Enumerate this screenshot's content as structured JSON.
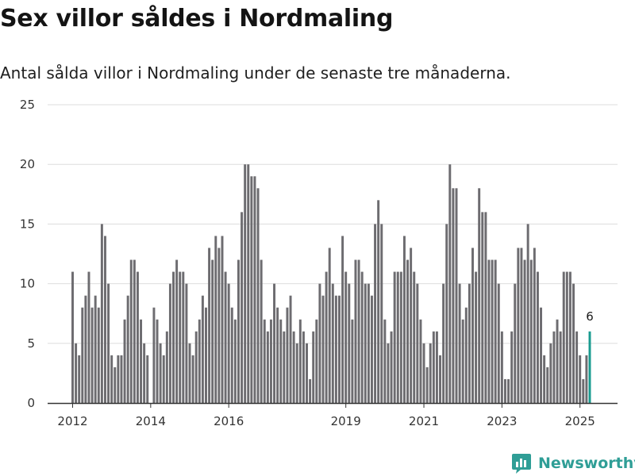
{
  "title": "Sex villor såldes i Nordmaling",
  "subtitle": "Antal sålda villor i Nordmaling under de senaste tre månaderna.",
  "brand": "Newsworthy",
  "colors": {
    "bar": "#6d6c70",
    "highlight": "#1a9b90",
    "grid": "#dddddd",
    "axis": "#333333",
    "brand": "#2f9e96"
  },
  "chart_data": {
    "type": "bar",
    "y_ticks": [
      0,
      5,
      10,
      15,
      20,
      25
    ],
    "ylim": [
      0,
      25
    ],
    "x_ticks": [
      {
        "label": "2012",
        "year": 2012
      },
      {
        "label": "2014",
        "year": 2014
      },
      {
        "label": "2016",
        "year": 2016
      },
      {
        "label": "2019",
        "year": 2019
      },
      {
        "label": "2021",
        "year": 2021
      },
      {
        "label": "2023",
        "year": 2023
      },
      {
        "label": "2025",
        "year": 2025
      }
    ],
    "period_start": "2012-01",
    "period_end": "2025-03",
    "values": [
      11,
      5,
      4,
      8,
      9,
      11,
      8,
      9,
      8,
      15,
      14,
      10,
      4,
      3,
      4,
      4,
      7,
      9,
      12,
      12,
      11,
      7,
      5,
      4,
      0,
      8,
      7,
      5,
      4,
      6,
      10,
      11,
      12,
      11,
      11,
      10,
      5,
      4,
      6,
      7,
      9,
      8,
      13,
      12,
      14,
      13,
      14,
      11,
      10,
      8,
      7,
      12,
      16,
      20,
      20,
      19,
      19,
      18,
      12,
      7,
      6,
      7,
      10,
      8,
      7,
      6,
      8,
      9,
      6,
      5,
      7,
      6,
      5,
      2,
      6,
      7,
      10,
      9,
      11,
      13,
      10,
      9,
      9,
      14,
      11,
      10,
      7,
      12,
      12,
      11,
      10,
      10,
      9,
      15,
      17,
      15,
      7,
      5,
      6,
      11,
      11,
      11,
      14,
      12,
      13,
      11,
      10,
      7,
      5,
      3,
      5,
      6,
      6,
      4,
      10,
      15,
      20,
      18,
      18,
      10,
      7,
      8,
      10,
      13,
      11,
      18,
      16,
      16,
      12,
      12,
      12,
      10,
      6,
      2,
      2,
      6,
      10,
      13,
      13,
      12,
      15,
      12,
      13,
      11,
      8,
      4,
      3,
      5,
      6,
      7,
      6,
      11,
      11,
      11,
      10,
      6,
      4,
      2,
      4,
      6
    ],
    "highlight_last": true,
    "annotation": "6"
  }
}
